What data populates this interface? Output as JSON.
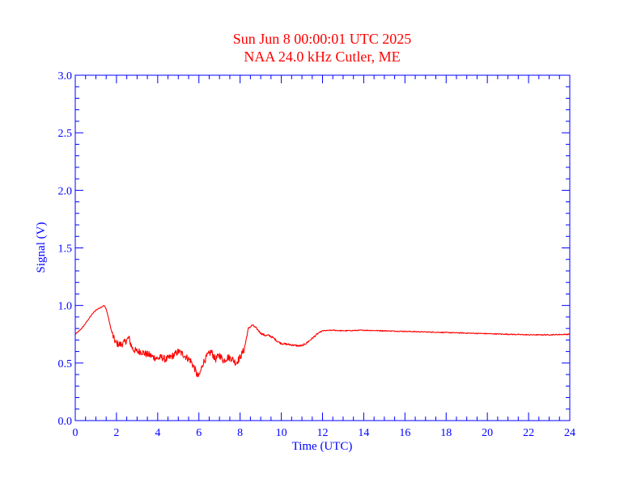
{
  "chart_data": {
    "type": "line",
    "title": [
      "Sun Jun 8 00:00:01 UTC 2025",
      "NAA 24.0 kHz Cutler, ME"
    ],
    "xlabel": "Time (UTC)",
    "ylabel": "Signal (V)",
    "xlim": [
      0,
      24
    ],
    "ylim": [
      0,
      3
    ],
    "x_ticks": [
      "0",
      "2",
      "4",
      "6",
      "8",
      "10",
      "12",
      "14",
      "16",
      "18",
      "20",
      "22",
      "24"
    ],
    "y_ticks": [
      "0.0",
      "0.5",
      "1.0",
      "1.5",
      "2.0",
      "2.5",
      "3.0"
    ],
    "grid": false,
    "colors": {
      "axes": "#0000ff",
      "title": "#ff0000",
      "series": "#ff0000"
    },
    "series": [
      {
        "x": [
          0,
          0.2,
          0.4,
          0.6,
          0.8,
          1.0,
          1.2,
          1.4,
          1.5,
          1.6,
          1.7,
          1.8,
          1.9,
          2.0,
          2.2,
          2.4,
          2.5,
          2.6,
          2.7,
          2.8,
          3.0,
          3.2,
          3.4,
          3.6,
          3.8,
          4.0,
          4.2,
          4.4,
          4.6,
          4.8,
          5.0,
          5.2,
          5.4,
          5.6,
          5.8,
          5.9,
          6.0,
          6.2,
          6.4,
          6.6,
          6.8,
          7.0,
          7.2,
          7.4,
          7.6,
          7.8,
          8.0,
          8.2,
          8.4,
          8.6,
          8.8,
          9.0,
          9.2,
          9.4,
          9.6,
          9.8,
          10.0,
          10.4,
          10.8,
          11.0,
          11.2,
          11.4,
          11.6,
          11.8,
          12.0,
          12.5,
          13.0,
          14.0,
          15.0,
          16.0,
          17.0,
          18.0,
          19.0,
          20.0,
          21.0,
          22.0,
          23.0,
          24.0
        ],
        "y": [
          0.75,
          0.78,
          0.82,
          0.87,
          0.92,
          0.96,
          0.98,
          1.0,
          0.97,
          0.9,
          0.82,
          0.75,
          0.7,
          0.67,
          0.66,
          0.68,
          0.7,
          0.72,
          0.66,
          0.62,
          0.6,
          0.6,
          0.58,
          0.57,
          0.55,
          0.54,
          0.55,
          0.53,
          0.55,
          0.57,
          0.6,
          0.58,
          0.55,
          0.52,
          0.45,
          0.4,
          0.38,
          0.5,
          0.56,
          0.6,
          0.53,
          0.57,
          0.52,
          0.55,
          0.54,
          0.5,
          0.55,
          0.62,
          0.8,
          0.83,
          0.8,
          0.76,
          0.74,
          0.74,
          0.72,
          0.69,
          0.67,
          0.66,
          0.65,
          0.65,
          0.67,
          0.7,
          0.73,
          0.76,
          0.78,
          0.785,
          0.78,
          0.785,
          0.78,
          0.775,
          0.77,
          0.765,
          0.76,
          0.755,
          0.75,
          0.745,
          0.745,
          0.75
        ]
      }
    ]
  }
}
